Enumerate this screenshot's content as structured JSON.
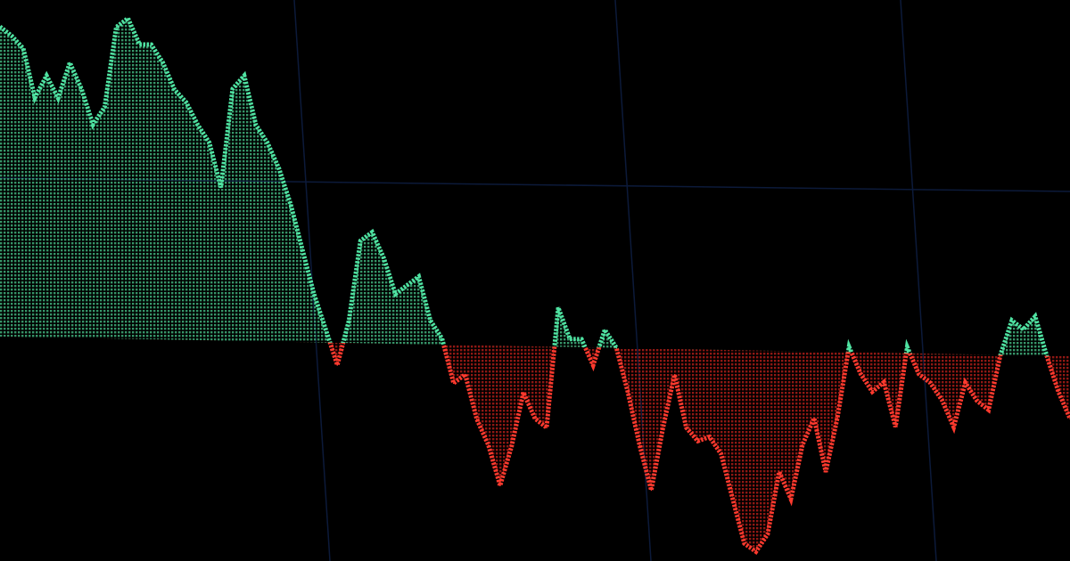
{
  "chart_data": {
    "type": "area",
    "title": "",
    "xlabel": "",
    "ylabel": "",
    "grid": true,
    "baseline": 0,
    "ylim": [
      -240,
      370
    ],
    "colors": {
      "above": "#4fe3a2",
      "below": "#ff3a2e",
      "background": "#000000",
      "grid": "#0c1a3a"
    },
    "series": [
      {
        "values": [
          348,
          338,
          324,
          269,
          294,
          269,
          309,
          280,
          240,
          260,
          350,
          360,
          331,
          331,
          311,
          281,
          267,
          242,
          222,
          172,
          283,
          298,
          243,
          223,
          194,
          154,
          104,
          54,
          15,
          -25,
          25,
          115,
          125,
          96,
          56,
          66,
          76,
          27,
          7,
          -43,
          -33,
          -83,
          -112,
          -157,
          -112,
          -52,
          -81,
          -91,
          44,
          9,
          9,
          -20,
          20,
          0,
          -50,
          -109,
          -159,
          -89,
          -29,
          -88,
          -103,
          -98,
          -117,
          -167,
          -217,
          -226,
          -206,
          -136,
          -166,
          -105,
          -75,
          -135,
          -74,
          6,
          -24,
          -44,
          -33,
          -83,
          7,
          -23,
          -33,
          -52,
          -82,
          -32,
          -52,
          -62,
          -1,
          39,
          29,
          44,
          0,
          -40,
          -70
        ]
      }
    ]
  }
}
